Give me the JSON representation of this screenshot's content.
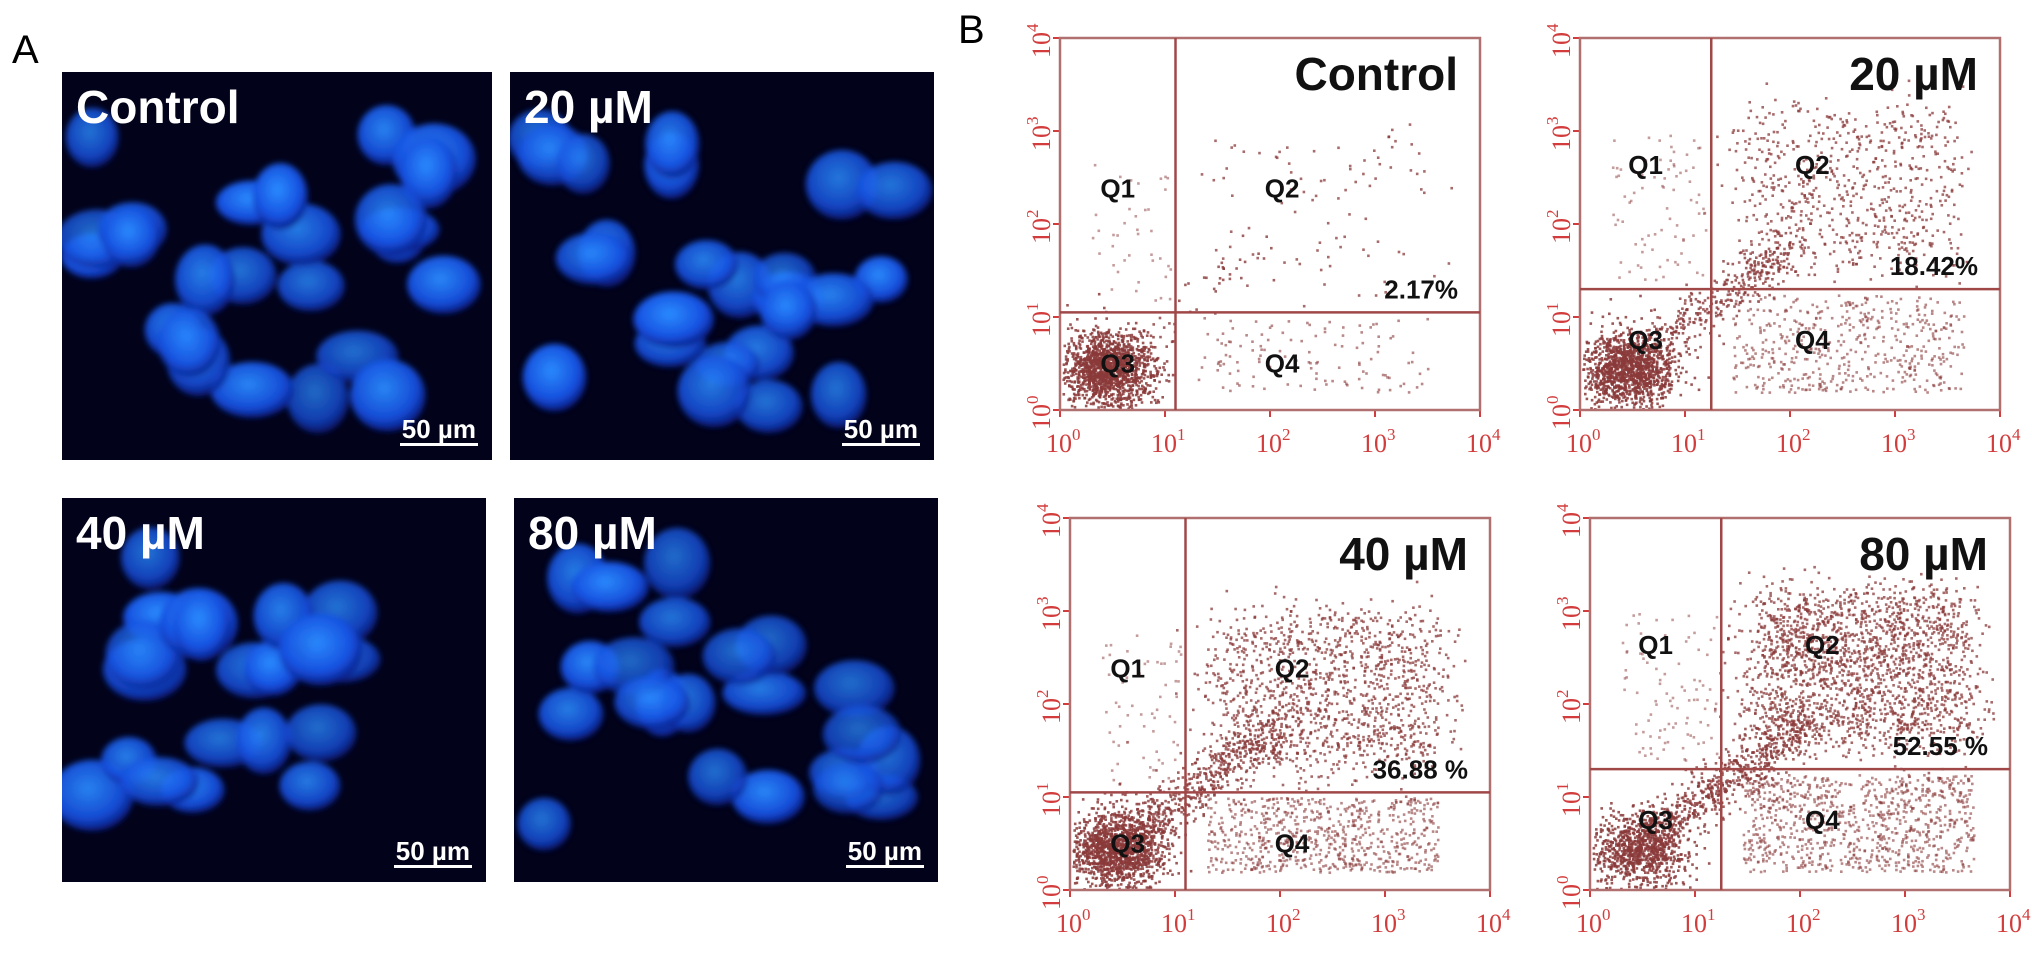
{
  "panel_a": {
    "letter": "A",
    "images": [
      {
        "label": "Control",
        "scalebar": "50  µm"
      },
      {
        "label": "20 µM",
        "scalebar": "50  µm"
      },
      {
        "label": "40 µM",
        "scalebar": "50  µm"
      },
      {
        "label": "80 µM",
        "scalebar": "50  µm"
      }
    ]
  },
  "panel_b": {
    "letter": "B",
    "axis_ticks": [
      "10",
      "10",
      "10",
      "10",
      "10"
    ],
    "axis_exponents": [
      "0",
      "1",
      "2",
      "3",
      "4"
    ],
    "colors": {
      "axis": "#d23c3c",
      "frame": "#b07070",
      "dots": "#8b3a3a",
      "gate": "#a04848"
    },
    "plots": [
      {
        "condition": "Control",
        "quadrants": [
          "Q1",
          "Q2",
          "Q3",
          "Q4"
        ],
        "q2_percent": "2.17%",
        "gate_x_log": 1.1,
        "gate_y_log": 1.05
      },
      {
        "condition": "20 µM",
        "quadrants": [
          "Q1",
          "Q2",
          "Q3",
          "Q4"
        ],
        "q2_percent": "18.42%",
        "gate_x_log": 1.25,
        "gate_y_log": 1.3
      },
      {
        "condition": "40 µM",
        "quadrants": [
          "Q1",
          "Q2",
          "Q3",
          "Q4"
        ],
        "q2_percent": "36.88 %",
        "gate_x_log": 1.1,
        "gate_y_log": 1.05
      },
      {
        "condition": "80 µM",
        "quadrants": [
          "Q1",
          "Q2",
          "Q3",
          "Q4"
        ],
        "q2_percent": "52.55 %",
        "gate_x_log": 1.25,
        "gate_y_log": 1.3
      }
    ]
  }
}
